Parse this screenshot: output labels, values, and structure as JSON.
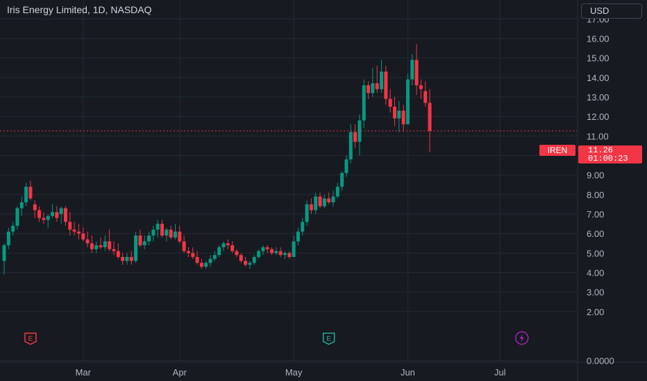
{
  "header": {
    "title": "Iris Energy Limited, 1D, NASDAQ",
    "currency_label": "USD"
  },
  "price_tag": {
    "ticker": "IREN",
    "price": "11.26",
    "countdown": "01:00:23"
  },
  "colors": {
    "background": "#171a21",
    "grid": "#252932",
    "up": "#089981",
    "down": "#f23645",
    "text": "#b2b5be",
    "earnings_red": "#f23645",
    "earnings_green": "#22ab94",
    "dividend_purple": "#9c27b0"
  },
  "event_markers": [
    {
      "type": "earnings",
      "label": "E",
      "date_index": 6,
      "color": "red"
    },
    {
      "type": "earnings",
      "label": "E",
      "date_index": 74,
      "color": "green"
    },
    {
      "type": "split",
      "label": "⚡",
      "date_index": 118,
      "color": "purple"
    }
  ],
  "chart_data": {
    "type": "candlestick",
    "title": "Iris Energy Limited, 1D, NASDAQ",
    "y_ticks": [
      "0.0000",
      "2.00",
      "3.00",
      "4.00",
      "5.00",
      "6.00",
      "7.00",
      "8.00",
      "9.00",
      "10.00",
      "11.00",
      "12.00",
      "13.00",
      "14.00",
      "15.00",
      "16.00",
      "17.00"
    ],
    "x_ticks": [
      {
        "label": "Mar",
        "index": 18
      },
      {
        "label": "Apr",
        "index": 40
      },
      {
        "label": "May",
        "index": 66
      },
      {
        "label": "Jun",
        "index": 92
      },
      {
        "label": "Jul",
        "index": 113
      }
    ],
    "last_price": 11.26,
    "ohlc": [
      [
        4.6,
        5.5,
        3.9,
        5.4
      ],
      [
        5.4,
        6.3,
        5.2,
        6.1
      ],
      [
        6.1,
        6.6,
        5.9,
        6.4
      ],
      [
        6.4,
        7.4,
        6.2,
        7.3
      ],
      [
        7.3,
        7.9,
        6.9,
        7.6
      ],
      [
        7.6,
        8.6,
        7.4,
        8.4
      ],
      [
        8.4,
        8.7,
        7.7,
        7.8
      ],
      [
        7.5,
        7.7,
        6.8,
        7.2
      ],
      [
        7.2,
        7.4,
        6.6,
        6.8
      ],
      [
        6.8,
        7.1,
        6.5,
        6.7
      ],
      [
        6.7,
        7.0,
        6.3,
        6.9
      ],
      [
        6.9,
        7.5,
        6.8,
        7.1
      ],
      [
        7.1,
        7.4,
        6.6,
        6.8
      ],
      [
        7.0,
        7.4,
        6.5,
        7.3
      ],
      [
        7.3,
        7.4,
        6.4,
        6.6
      ],
      [
        6.6,
        7.1,
        5.9,
        6.2
      ],
      [
        6.2,
        6.6,
        5.9,
        6.1
      ],
      [
        6.1,
        6.5,
        5.7,
        6.0
      ],
      [
        6.0,
        6.3,
        5.6,
        5.7
      ],
      [
        5.7,
        6.1,
        5.3,
        5.5
      ],
      [
        5.5,
        5.9,
        5.0,
        5.2
      ],
      [
        5.2,
        5.6,
        5.0,
        5.4
      ],
      [
        5.4,
        5.8,
        5.2,
        5.3
      ],
      [
        5.3,
        5.9,
        5.1,
        5.6
      ],
      [
        5.6,
        6.2,
        5.1,
        5.2
      ],
      [
        5.2,
        5.6,
        4.9,
        5.1
      ],
      [
        5.1,
        5.5,
        4.7,
        4.8
      ],
      [
        4.8,
        5.0,
        4.4,
        4.6
      ],
      [
        4.6,
        5.0,
        4.4,
        4.8
      ],
      [
        4.8,
        5.1,
        4.4,
        4.6
      ],
      [
        4.6,
        6.1,
        4.5,
        5.9
      ],
      [
        5.9,
        6.2,
        5.3,
        5.4
      ],
      [
        5.4,
        5.9,
        5.2,
        5.6
      ],
      [
        5.6,
        6.1,
        5.4,
        5.9
      ],
      [
        5.9,
        6.4,
        5.6,
        6.2
      ],
      [
        6.2,
        6.7,
        5.8,
        6.5
      ],
      [
        6.5,
        6.7,
        5.8,
        5.9
      ],
      [
        5.9,
        6.3,
        5.6,
        6.2
      ],
      [
        6.2,
        6.4,
        5.7,
        5.8
      ],
      [
        5.8,
        6.5,
        5.7,
        6.1
      ],
      [
        6.1,
        6.4,
        5.5,
        5.6
      ],
      [
        5.6,
        5.9,
        5.0,
        5.1
      ],
      [
        5.1,
        5.3,
        4.8,
        5.0
      ],
      [
        5.0,
        5.3,
        4.7,
        4.8
      ],
      [
        4.8,
        5.1,
        4.4,
        4.5
      ],
      [
        4.5,
        4.7,
        4.2,
        4.3
      ],
      [
        4.3,
        4.6,
        4.2,
        4.5
      ],
      [
        4.5,
        4.9,
        4.3,
        4.7
      ],
      [
        4.7,
        5.1,
        4.6,
        4.9
      ],
      [
        4.9,
        5.4,
        4.8,
        5.3
      ],
      [
        5.3,
        5.6,
        5.1,
        5.5
      ],
      [
        5.5,
        5.7,
        5.2,
        5.4
      ],
      [
        5.4,
        5.6,
        5.0,
        5.1
      ],
      [
        5.1,
        5.2,
        4.8,
        4.9
      ],
      [
        4.9,
        5.0,
        4.5,
        4.6
      ],
      [
        4.6,
        4.8,
        4.3,
        4.4
      ],
      [
        4.4,
        4.6,
        4.2,
        4.5
      ],
      [
        4.5,
        4.9,
        4.4,
        4.8
      ],
      [
        4.8,
        5.2,
        4.7,
        5.1
      ],
      [
        5.1,
        5.4,
        4.9,
        5.3
      ],
      [
        5.3,
        5.4,
        5.0,
        5.2
      ],
      [
        5.2,
        5.3,
        4.9,
        5.0
      ],
      [
        5.0,
        5.3,
        4.9,
        5.1
      ],
      [
        5.1,
        5.3,
        4.8,
        4.9
      ],
      [
        4.9,
        5.1,
        4.7,
        5.0
      ],
      [
        5.0,
        5.1,
        4.7,
        4.8
      ],
      [
        4.8,
        5.9,
        4.8,
        5.6
      ],
      [
        5.6,
        6.3,
        5.4,
        6.1
      ],
      [
        6.1,
        6.8,
        5.9,
        6.6
      ],
      [
        6.6,
        7.7,
        6.4,
        7.5
      ],
      [
        7.5,
        7.8,
        7.0,
        7.2
      ],
      [
        7.2,
        8.1,
        7.0,
        7.9
      ],
      [
        7.9,
        8.1,
        7.3,
        7.4
      ],
      [
        7.4,
        8.0,
        7.3,
        7.8
      ],
      [
        7.8,
        8.1,
        7.5,
        7.6
      ],
      [
        7.6,
        8.2,
        7.4,
        7.9
      ],
      [
        7.9,
        8.6,
        7.8,
        8.4
      ],
      [
        8.4,
        9.2,
        8.2,
        9.1
      ],
      [
        9.1,
        10.0,
        8.9,
        9.8
      ],
      [
        9.8,
        11.6,
        9.6,
        11.2
      ],
      [
        11.2,
        11.6,
        10.4,
        10.7
      ],
      [
        10.7,
        12.1,
        10.0,
        11.8
      ],
      [
        11.8,
        13.9,
        11.4,
        13.6
      ],
      [
        13.6,
        13.8,
        12.9,
        13.2
      ],
      [
        13.2,
        14.5,
        13.0,
        13.7
      ],
      [
        13.7,
        14.6,
        13.2,
        13.4
      ],
      [
        13.4,
        14.9,
        13.2,
        14.3
      ],
      [
        14.3,
        14.6,
        12.6,
        12.9
      ],
      [
        12.9,
        13.4,
        12.2,
        12.5
      ],
      [
        12.5,
        13.0,
        11.5,
        11.9
      ],
      [
        11.9,
        12.8,
        11.2,
        12.3
      ],
      [
        12.3,
        12.6,
        11.2,
        11.6
      ],
      [
        11.6,
        14.2,
        11.6,
        13.9
      ],
      [
        13.9,
        15.2,
        13.6,
        14.9
      ],
      [
        14.9,
        15.7,
        13.1,
        13.6
      ],
      [
        13.6,
        13.9,
        12.9,
        13.4
      ],
      [
        13.3,
        13.8,
        12.5,
        12.7
      ],
      [
        12.7,
        13.4,
        10.2,
        11.26
      ]
    ]
  }
}
